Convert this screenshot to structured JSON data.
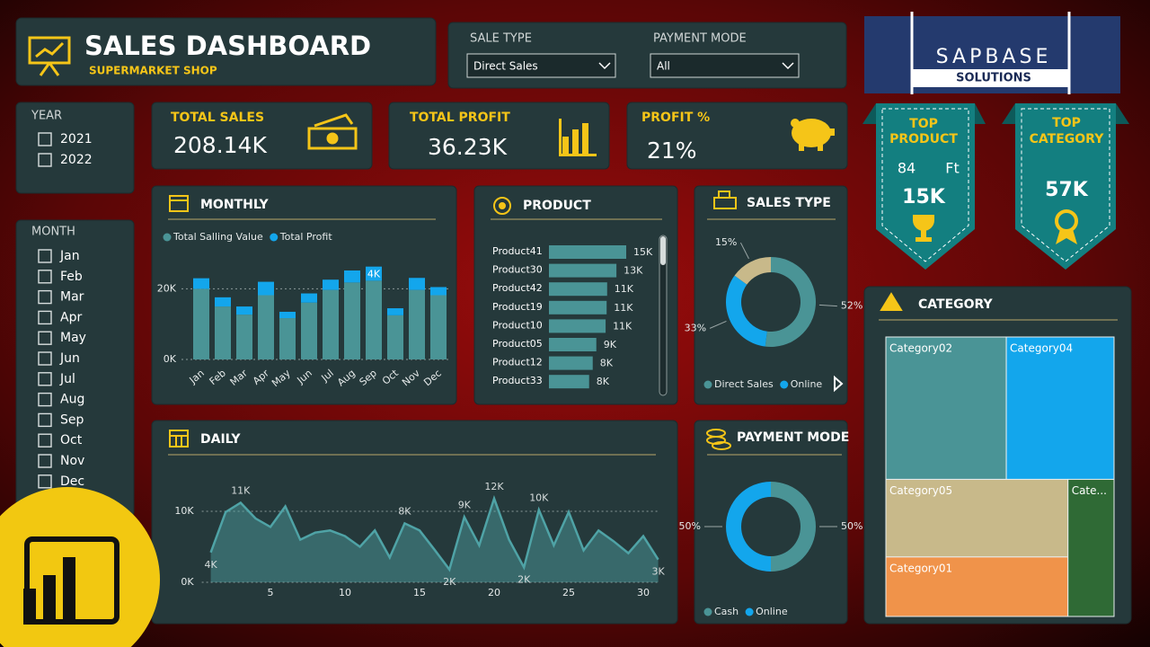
{
  "header": {
    "title": "SALES DASHBOARD",
    "subtitle": "SUPERMARKET SHOP"
  },
  "filters": [
    {
      "label": "SALE TYPE",
      "value": "Direct Sales"
    },
    {
      "label": "PAYMENT MODE",
      "value": "All"
    }
  ],
  "logo": {
    "name": "SAPBASE",
    "tagline": "SOLUTIONS"
  },
  "year_slicer": {
    "label": "YEAR",
    "options": [
      "2021",
      "2022"
    ]
  },
  "month_slicer": {
    "label": "MONTH",
    "options": [
      "Jan",
      "Feb",
      "Mar",
      "Apr",
      "May",
      "Jun",
      "Jul",
      "Aug",
      "Sep",
      "Oct",
      "Nov",
      "Dec"
    ]
  },
  "kpis": [
    {
      "label": "TOTAL SALES",
      "value": "208.14K"
    },
    {
      "label": "TOTAL PROFIT",
      "value": "36.23K"
    },
    {
      "label": "PROFIT %",
      "value": "21%"
    }
  ],
  "badges": [
    {
      "title_lines": [
        "TOP",
        "PRODUCT"
      ],
      "lines": [
        "84",
        "Ft"
      ],
      "value": "15K"
    },
    {
      "title_lines": [
        "TOP",
        "CATEGORY"
      ],
      "value": "57K"
    }
  ],
  "chart_data": [
    {
      "type": "bar",
      "stacked": true,
      "title": "MONTHLY",
      "categories": [
        "Jan",
        "Feb",
        "Mar",
        "Apr",
        "May",
        "Jun",
        "Jul",
        "Aug",
        "Sep",
        "Oct",
        "Nov",
        "Dec"
      ],
      "series": [
        {
          "name": "Total Salling Value",
          "color": "#4a9496",
          "values": [
            20000,
            15000,
            12700,
            18200,
            11700,
            16100,
            19700,
            21800,
            22300,
            12500,
            19700,
            18200
          ]
        },
        {
          "name": "Total Profit",
          "color": "#13a6ec",
          "values": [
            3000,
            2600,
            2300,
            3800,
            1800,
            2600,
            2900,
            3400,
            4000,
            2000,
            3400,
            2300
          ],
          "value_labels": [
            null,
            null,
            null,
            null,
            null,
            null,
            null,
            null,
            "4K",
            null,
            null,
            null
          ]
        }
      ],
      "ylim": [
        0,
        28000
      ],
      "yticks": [
        {
          "value": 0,
          "label": "0K"
        },
        {
          "value": 20000,
          "label": "20K"
        }
      ],
      "grid": true
    },
    {
      "type": "bar",
      "orientation": "horizontal",
      "title": "PRODUCT",
      "categories": [
        "Product41",
        "Product30",
        "Product42",
        "Product19",
        "Product10",
        "Product05",
        "Product12",
        "Product33"
      ],
      "values": [
        15000,
        13100,
        11300,
        11200,
        11000,
        9200,
        8500,
        7800
      ],
      "value_labels": [
        "15K",
        "13K",
        "11K",
        "11K",
        "11K",
        "9K",
        "8K",
        "8K"
      ],
      "color": "#4a9496"
    },
    {
      "type": "donut",
      "title": "SALES TYPE",
      "categories": [
        "Direct Sales",
        "Online",
        null
      ],
      "values": [
        52,
        33,
        15
      ],
      "value_labels": [
        "52%",
        "33%",
        "15%"
      ],
      "colors": [
        "#4a9496",
        "#13a6ec",
        "#c8b98a"
      ]
    },
    {
      "type": "line",
      "area": true,
      "title": "DAILY",
      "x": [
        1,
        2,
        3,
        4,
        5,
        6,
        7,
        8,
        9,
        10,
        11,
        12,
        13,
        14,
        15,
        16,
        17,
        18,
        19,
        20,
        21,
        22,
        23,
        24,
        25,
        26,
        27,
        28,
        29,
        30,
        31
      ],
      "values": [
        4200,
        9900,
        11200,
        9000,
        7800,
        10700,
        6000,
        7000,
        7300,
        6500,
        5000,
        7300,
        3500,
        8300,
        7300,
        4600,
        1800,
        9200,
        5200,
        11800,
        6000,
        2100,
        10200,
        5200,
        9900,
        4500,
        7300,
        5800,
        4100,
        6500,
        3200
      ],
      "value_labels": [
        "4K",
        null,
        "11K",
        null,
        null,
        null,
        null,
        null,
        null,
        null,
        null,
        null,
        null,
        "8K",
        null,
        null,
        "2K",
        "9K",
        null,
        "12K",
        null,
        "2K",
        "10K",
        null,
        null,
        null,
        null,
        null,
        null,
        null,
        "3K"
      ],
      "color": "#4fa3a6",
      "xlim": [
        1,
        31
      ],
      "xticks": [
        5,
        10,
        15,
        20,
        25,
        30
      ],
      "ylim": [
        0,
        13000
      ],
      "yticks": [
        {
          "value": 0,
          "label": "0K"
        },
        {
          "value": 10000,
          "label": "10K"
        }
      ],
      "grid": true
    },
    {
      "type": "donut",
      "title": "PAYMENT MODE",
      "categories": [
        "Cash",
        "Online"
      ],
      "values": [
        50,
        50
      ],
      "value_labels": [
        "50%",
        "50%"
      ],
      "colors": [
        "#4a9496",
        "#13a6ec"
      ]
    },
    {
      "type": "treemap",
      "title": "CATEGORY",
      "categories": [
        "Category02",
        "Category04",
        "Category05",
        "Category01",
        "Cate..."
      ],
      "values": [
        57000,
        51000,
        47000,
        36000,
        21000
      ],
      "colors": [
        "#4a9496",
        "#13a6ec",
        "#c8b98a",
        "#f0934a",
        "#2f6a35"
      ]
    }
  ]
}
